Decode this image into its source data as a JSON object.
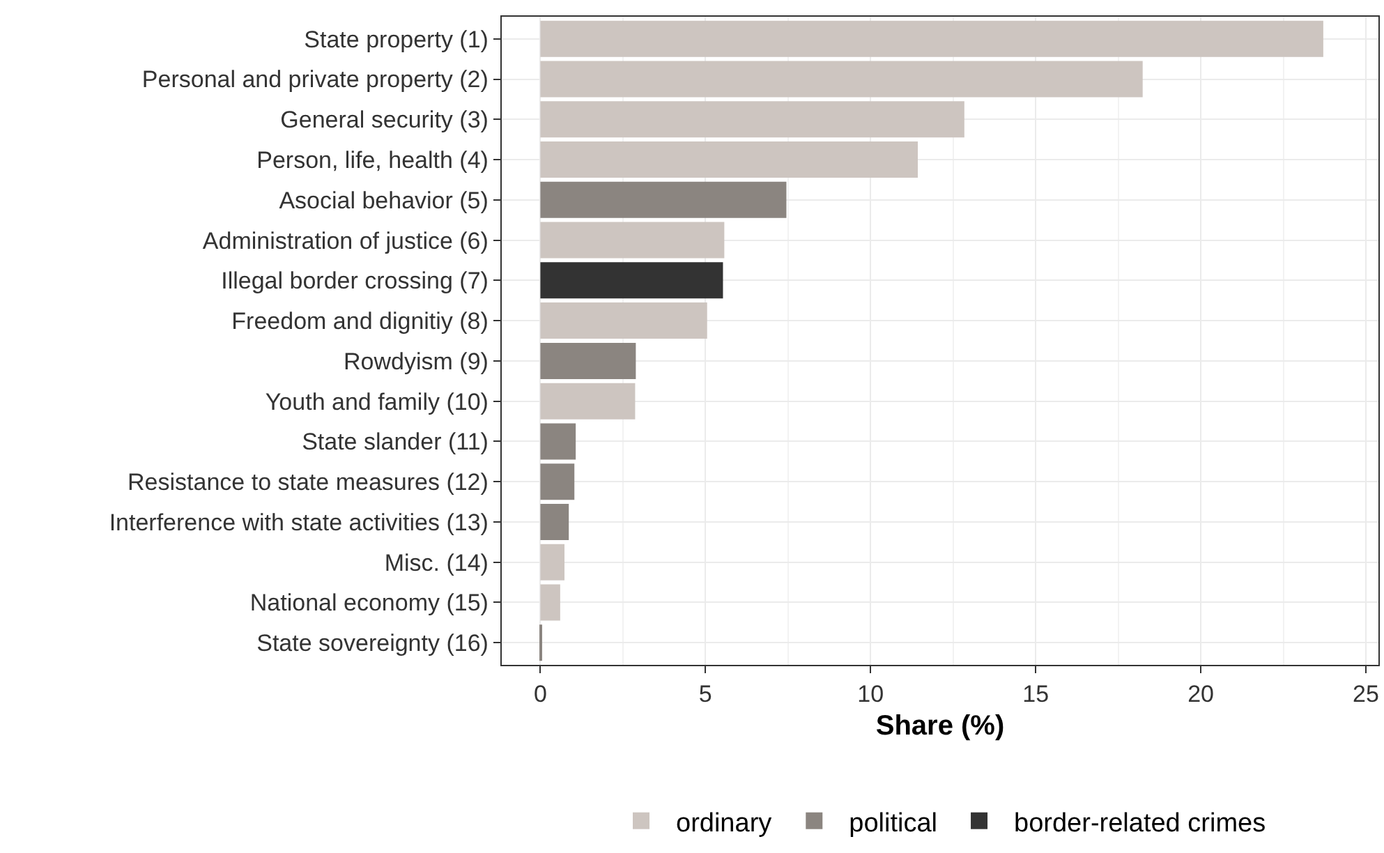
{
  "chart_data": {
    "type": "bar",
    "orientation": "horizontal",
    "stacked": true,
    "xlabel": "Share (%)",
    "categories": [
      "State property (1)",
      "Personal and private property (2)",
      "General security (3)",
      "Person, life, health (4)",
      "Asocial behavior (5)",
      "Administration of justice (6)",
      "Illegal border crossing (7)",
      "Freedom and dignitiy (8)",
      "Rowdyism (9)",
      "Youth and family (10)",
      "State slander (11)",
      "Resistance to state measures (12)",
      "Interference with state activities (13)",
      "Misc. (14)",
      "National economy (15)",
      "State sovereignty (16)"
    ],
    "series": [
      {
        "name": "ordinary",
        "color": "#cdc5c0",
        "values": [
          23.71,
          18.24,
          12.84,
          11.43,
          null,
          5.57,
          null,
          5.05,
          null,
          2.87,
          null,
          null,
          null,
          0.73,
          0.6,
          null
        ]
      },
      {
        "name": "political",
        "color": "#8b8580",
        "values": [
          null,
          null,
          null,
          null,
          7.45,
          null,
          null,
          null,
          2.89,
          null,
          1.07,
          1.03,
          0.86,
          null,
          null,
          0.05
        ]
      },
      {
        "name": "border-related crimes",
        "color": "#333333",
        "values": [
          null,
          null,
          null,
          null,
          null,
          null,
          5.53,
          null,
          null,
          null,
          null,
          null,
          null,
          null,
          null,
          null
        ]
      }
    ],
    "xlim": [
      -1.17,
      25.38
    ],
    "xticks": [
      0,
      5,
      10,
      15,
      20,
      25
    ],
    "grid": true,
    "legend": "bottom"
  }
}
